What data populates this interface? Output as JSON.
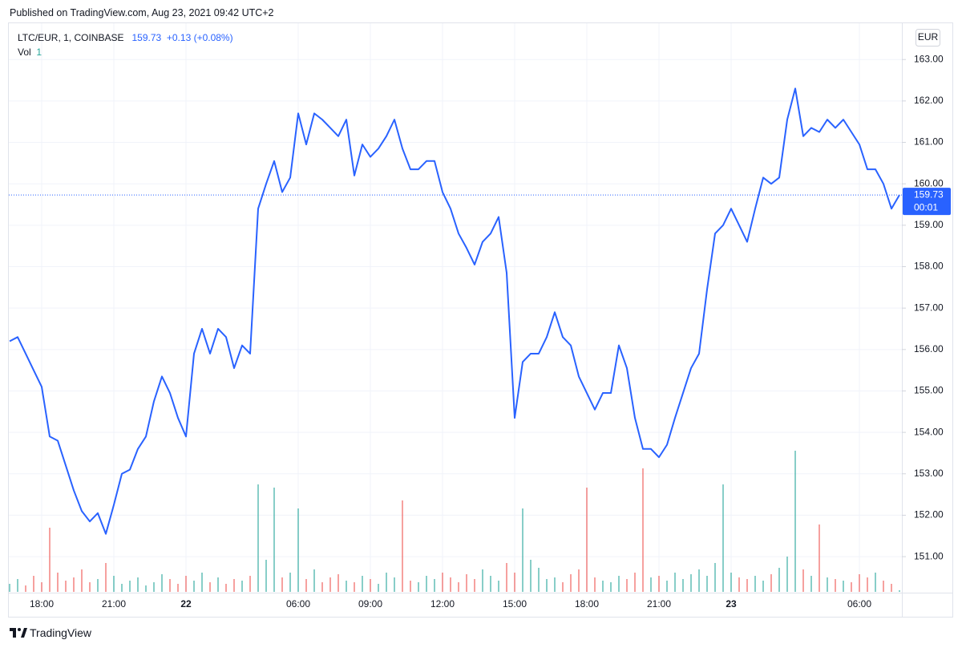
{
  "header": {
    "published": "Published on TradingView.com, Aug 23, 2021 09:42 UTC+2"
  },
  "footer": {
    "brand": "TradingView"
  },
  "chart_data": {
    "type": "line",
    "last_price": 159.73,
    "change": "+0.13 (+0.08%)",
    "currency": "EUR",
    "countdown": "00:01",
    "grid": true,
    "ylim": [
      150.15,
      163.74
    ],
    "yticks": [
      {
        "value": 151,
        "label": "151.00"
      },
      {
        "value": 152,
        "label": "152.00"
      },
      {
        "value": 153,
        "label": "153.00"
      },
      {
        "value": 154,
        "label": "154.00"
      },
      {
        "value": 155,
        "label": "155.00"
      },
      {
        "value": 156,
        "label": "156.00"
      },
      {
        "value": 157,
        "label": "157.00"
      },
      {
        "value": 158,
        "label": "158.00"
      },
      {
        "value": 159,
        "label": "159.00"
      },
      {
        "value": 160,
        "label": "160.00"
      },
      {
        "value": 161,
        "label": "161.00"
      },
      {
        "value": 162,
        "label": "162.00"
      },
      {
        "value": 163,
        "label": "163.00"
      }
    ],
    "y2lim": [
      0,
      100
    ],
    "categories": [
      null,
      null,
      null,
      null,
      "18:00",
      null,
      null,
      null,
      null,
      null,
      null,
      null,
      null,
      "21:00",
      null,
      null,
      null,
      null,
      null,
      null,
      null,
      null,
      "22",
      null,
      null,
      null,
      null,
      null,
      null,
      null,
      null,
      null,
      null,
      null,
      null,
      null,
      "06:00",
      null,
      null,
      null,
      null,
      null,
      null,
      null,
      null,
      "09:00",
      null,
      null,
      null,
      null,
      null,
      null,
      null,
      null,
      "12:00",
      null,
      null,
      null,
      null,
      null,
      null,
      null,
      null,
      "15:00",
      null,
      null,
      null,
      null,
      null,
      null,
      null,
      null,
      "18:00",
      null,
      null,
      null,
      null,
      null,
      null,
      null,
      null,
      "21:00",
      null,
      null,
      null,
      null,
      null,
      null,
      null,
      null,
      "23",
      null,
      null,
      null,
      null,
      null,
      null,
      null,
      null,
      null,
      null,
      null,
      null,
      null,
      null,
      null,
      "06:00",
      null,
      null,
      null,
      null,
      null
    ],
    "series": [
      {
        "name": "LTC/EUR, 1, COINBASE",
        "color": "#2962ff",
        "values": [
          156.2,
          156.3,
          155.9,
          155.5,
          155.1,
          153.9,
          153.8,
          153.2,
          152.6,
          152.1,
          151.85,
          152.05,
          151.55,
          152.25,
          153.0,
          153.1,
          153.6,
          153.9,
          154.75,
          155.35,
          154.95,
          154.35,
          153.9,
          155.9,
          156.5,
          155.9,
          156.5,
          156.3,
          155.55,
          156.1,
          155.9,
          159.4,
          160.0,
          160.55,
          159.8,
          160.15,
          161.7,
          160.95,
          161.7,
          161.55,
          161.35,
          161.15,
          161.55,
          160.2,
          160.95,
          160.65,
          160.85,
          161.15,
          161.55,
          160.85,
          160.35,
          160.35,
          160.55,
          160.55,
          159.8,
          159.4,
          158.8,
          158.45,
          158.05,
          158.6,
          158.8,
          159.2,
          157.85,
          154.35,
          155.7,
          155.9,
          155.9,
          156.3,
          156.9,
          156.3,
          156.1,
          155.35,
          154.95,
          154.55,
          154.95,
          154.95,
          156.1,
          155.55,
          154.35,
          153.6,
          153.6,
          153.4,
          153.7,
          154.35,
          154.95,
          155.55,
          155.9,
          157.45,
          158.8,
          159.0,
          159.4,
          159.0,
          158.6,
          159.4,
          160.15,
          160.0,
          160.15,
          161.55,
          162.3,
          161.15,
          161.35,
          161.25,
          161.55,
          161.35,
          161.55,
          161.25,
          160.95,
          160.35,
          160.35,
          160.0,
          159.4,
          159.73
        ]
      },
      {
        "name": "Vol",
        "type": "bar",
        "axis": "y2",
        "up_color": "#26a69a",
        "down_color": "#ef5350",
        "values": [
          5,
          8,
          4,
          10,
          6,
          40,
          12,
          7,
          9,
          14,
          6,
          8,
          18,
          10,
          5,
          7,
          9,
          4,
          6,
          11,
          8,
          5,
          10,
          7,
          12,
          6,
          9,
          5,
          8,
          7,
          10,
          67,
          20,
          65,
          9,
          12,
          52,
          8,
          14,
          6,
          9,
          11,
          7,
          6,
          10,
          8,
          5,
          12,
          9,
          57,
          7,
          6,
          10,
          8,
          12,
          9,
          6,
          11,
          8,
          14,
          10,
          7,
          18,
          12,
          52,
          20,
          15,
          8,
          9,
          6,
          11,
          14,
          65,
          9,
          7,
          6,
          10,
          8,
          12,
          77,
          9,
          10,
          7,
          12,
          8,
          11,
          14,
          10,
          18,
          67,
          12,
          9,
          8,
          10,
          7,
          11,
          15,
          22,
          88,
          14,
          10,
          42,
          9,
          8,
          7,
          6,
          11,
          9,
          12,
          7,
          5,
          1
        ]
      }
    ]
  }
}
